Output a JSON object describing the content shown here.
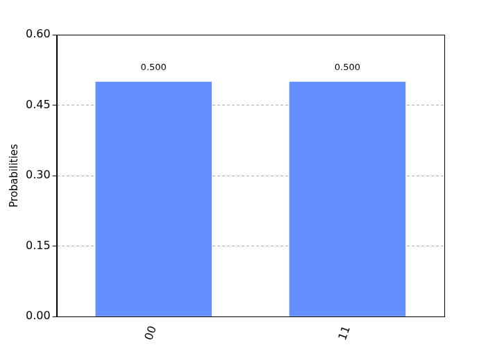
{
  "chart_data": {
    "type": "bar",
    "y_label": "Probabilities",
    "categories": [
      "00",
      "11"
    ],
    "values": [
      0.5,
      0.5
    ],
    "value_labels": [
      "0.500",
      "0.500"
    ],
    "color": "#648fff",
    "data_labels": true,
    "ylim": [
      0,
      0.6
    ],
    "yticks": [
      {
        "value": 0,
        "label": "0.00"
      },
      0.15,
      {
        "value": 0.3,
        "label": "0.30"
      },
      0.45,
      {
        "value": 0.6,
        "label": "0.60"
      }
    ],
    "grid": true
  }
}
